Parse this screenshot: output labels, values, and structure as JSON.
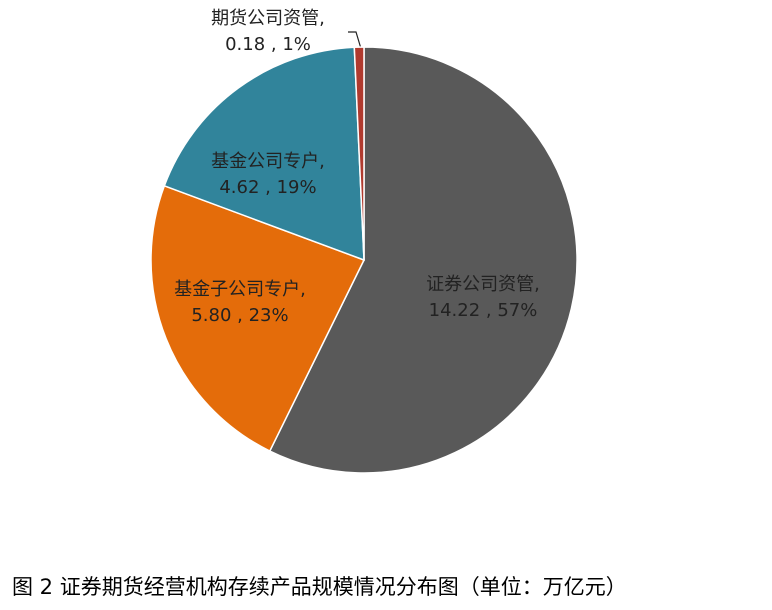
{
  "chart_data": {
    "type": "pie",
    "title": "图 2  证券期货经营机构存续产品规模情况分布图（单位：万亿元）",
    "categories": [
      "证券公司资管,",
      "基金子公司专户,",
      "基金公司专户,",
      "期货公司资管,"
    ],
    "values": [
      14.22,
      5.8,
      4.62,
      0.18
    ],
    "value_labels": [
      "14.22 , 57%",
      "5.80 , 23%",
      "4.62 , 19%",
      "0.18 , 1%"
    ],
    "colors": [
      "#595959",
      "#e46c0a",
      "#31849b",
      "#b03a2e"
    ]
  }
}
